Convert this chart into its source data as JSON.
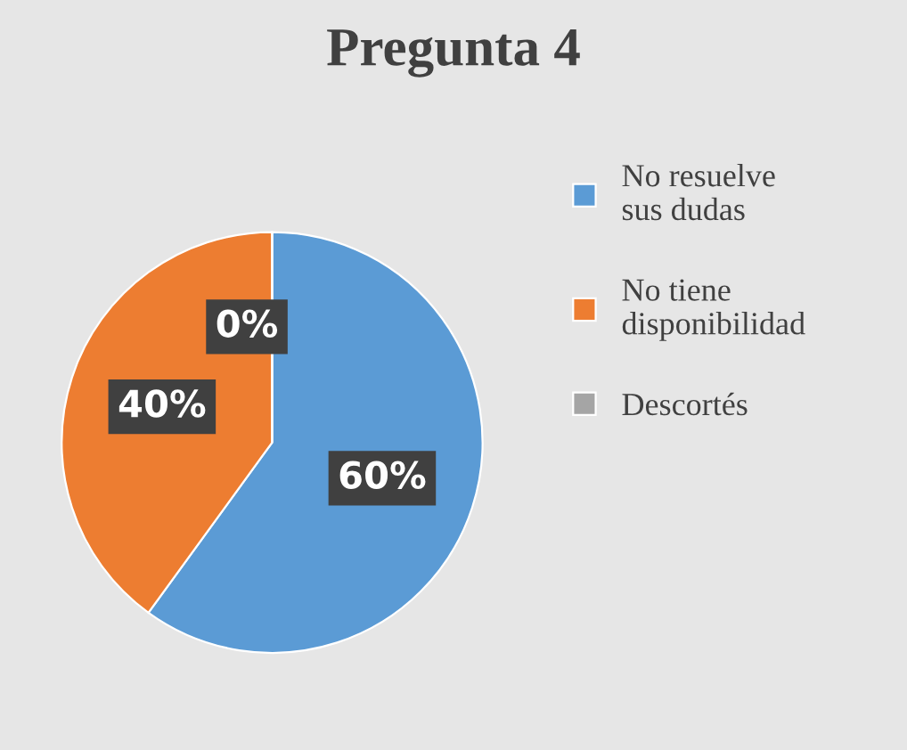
{
  "chart_data": {
    "type": "pie",
    "title": "Pregunta 4",
    "categories": [
      "No resuelve sus dudas",
      "No tiene disponibilidad",
      "Descortés"
    ],
    "values": [
      60,
      40,
      0
    ],
    "colors": [
      "#5b9bd5",
      "#ed7d31",
      "#a5a5a5"
    ],
    "value_labels": [
      "60%",
      "40%",
      "0%"
    ],
    "legend": "right"
  }
}
